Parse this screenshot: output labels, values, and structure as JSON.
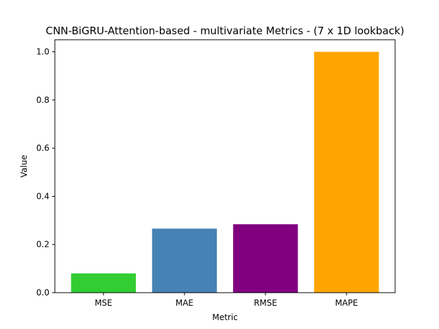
{
  "chart_data": {
    "type": "bar",
    "title": "CNN-BiGRU-Attention-based - multivariate Metrics - (7 x 1D lookback)",
    "xlabel": "Metric",
    "ylabel": "Value",
    "categories": [
      "MSE",
      "MAE",
      "RMSE",
      "MAPE"
    ],
    "values": [
      0.08,
      0.266,
      0.284,
      1.0
    ],
    "colors": [
      "#32cd32",
      "#4682b4",
      "#800080",
      "#ffa500"
    ],
    "ylim": [
      0,
      1.05
    ],
    "yticks": [
      0.0,
      0.2,
      0.4,
      0.6,
      0.8,
      1.0
    ],
    "ytick_labels": [
      "0.0",
      "0.2",
      "0.4",
      "0.6",
      "0.8",
      "1.0"
    ],
    "grid": false,
    "legend": "none"
  }
}
